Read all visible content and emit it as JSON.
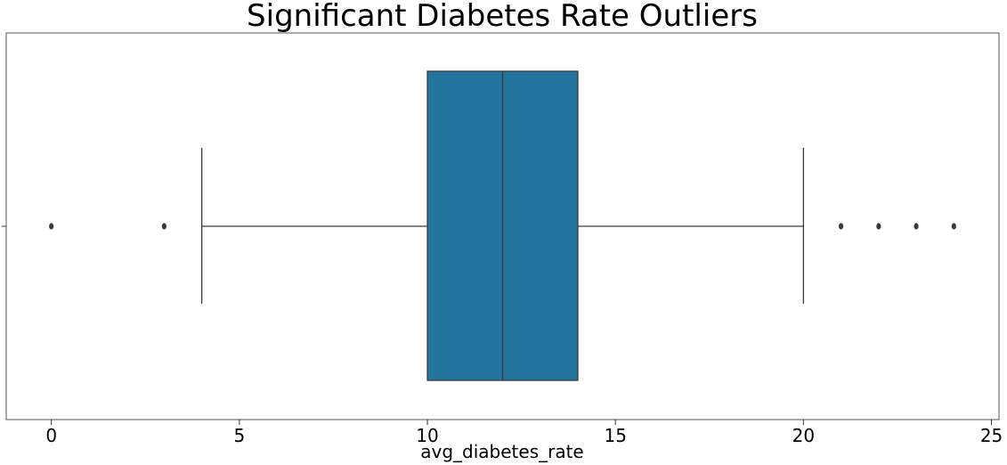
{
  "chart_data": {
    "type": "box",
    "title": "Significant Diabetes Rate Outliers",
    "xlabel": "avg_diabetes_rate",
    "ylabel": "",
    "xlim": [
      -1.2,
      25.2
    ],
    "xticks": [
      0,
      5,
      10,
      15,
      20,
      25
    ],
    "grid": false,
    "box": {
      "whisker_low": 4,
      "q1": 10,
      "median": 12,
      "q3": 14,
      "whisker_high": 20,
      "outliers": [
        0,
        3,
        21,
        22,
        23,
        24
      ]
    },
    "colors": {
      "box_fill": "#24759e",
      "line": "#3a3a3a",
      "frame": "#555555"
    }
  }
}
